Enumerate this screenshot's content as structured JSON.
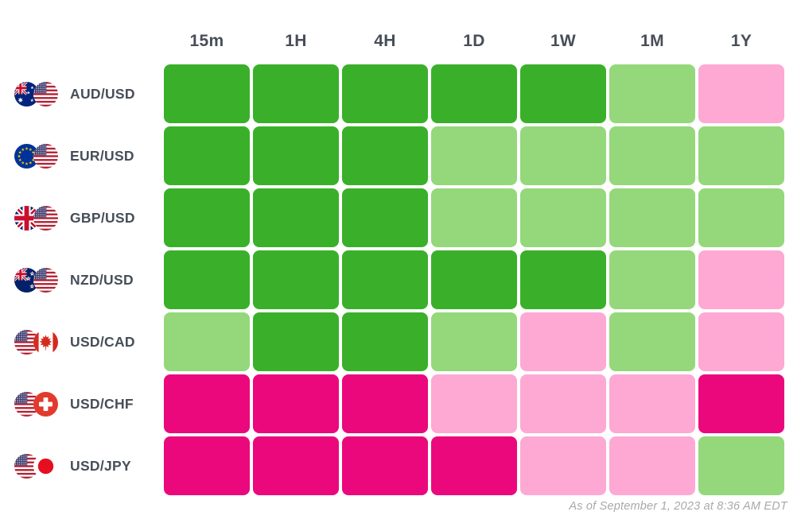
{
  "chart_data": {
    "type": "heatmap",
    "x_labels": [
      "15m",
      "1H",
      "4H",
      "1D",
      "1W",
      "1M",
      "1Y"
    ],
    "x_labels_position": "top",
    "y_labels": [
      "AUD/USD",
      "EUR/USD",
      "GBP/USD",
      "NZD/USD",
      "USD/CAD",
      "USD/CHF",
      "USD/JPY"
    ],
    "values": [
      [
        "strong-up",
        "strong-up",
        "strong-up",
        "strong-up",
        "strong-up",
        "up",
        "down"
      ],
      [
        "strong-up",
        "strong-up",
        "strong-up",
        "up",
        "up",
        "up",
        "up"
      ],
      [
        "strong-up",
        "strong-up",
        "strong-up",
        "up",
        "up",
        "up",
        "up"
      ],
      [
        "strong-up",
        "strong-up",
        "strong-up",
        "strong-up",
        "strong-up",
        "up",
        "down"
      ],
      [
        "up",
        "strong-up",
        "strong-up",
        "up",
        "down",
        "up",
        "down"
      ],
      [
        "strong-down",
        "strong-down",
        "strong-down",
        "down",
        "down",
        "down",
        "strong-down"
      ],
      [
        "strong-down",
        "strong-down",
        "strong-down",
        "strong-down",
        "down",
        "down",
        "up"
      ]
    ],
    "color_scale": {
      "strong-up": "#3AB02A",
      "up": "#94D87B",
      "down": "#FDA9D4",
      "strong-down": "#EB087D"
    },
    "legend_position": "none",
    "grid": false,
    "annotation": "As of September 1, 2023 at 8:36 AM EDT"
  },
  "columns": [
    "15m",
    "1H",
    "4H",
    "1D",
    "1W",
    "1M",
    "1Y"
  ],
  "rows": [
    {
      "pair": "AUD/USD",
      "base": "aud",
      "quote": "usd",
      "base_icon": "australia-flag-icon",
      "quote_icon": "us-flag-icon"
    },
    {
      "pair": "EUR/USD",
      "base": "eur",
      "quote": "usd",
      "base_icon": "eu-flag-icon",
      "quote_icon": "us-flag-icon"
    },
    {
      "pair": "GBP/USD",
      "base": "gbp",
      "quote": "usd",
      "base_icon": "uk-flag-icon",
      "quote_icon": "us-flag-icon"
    },
    {
      "pair": "NZD/USD",
      "base": "nzd",
      "quote": "usd",
      "base_icon": "new-zealand-flag-icon",
      "quote_icon": "us-flag-icon"
    },
    {
      "pair": "USD/CAD",
      "base": "usd",
      "quote": "cad",
      "base_icon": "us-flag-icon",
      "quote_icon": "canada-flag-icon"
    },
    {
      "pair": "USD/CHF",
      "base": "usd",
      "quote": "chf",
      "base_icon": "us-flag-icon",
      "quote_icon": "switzerland-flag-icon"
    },
    {
      "pair": "USD/JPY",
      "base": "usd",
      "quote": "jpy",
      "base_icon": "us-flag-icon",
      "quote_icon": "japan-flag-icon"
    }
  ],
  "footer": {
    "note": "As of September 1, 2023 at 8:36 AM EDT"
  },
  "colors": {
    "strong_up": "#3AB02A",
    "up": "#94D87B",
    "down": "#FDA9D4",
    "strong_down": "#EB087D",
    "header_text": "#474E58",
    "footer_text": "#A7A9AC",
    "background": "#FFFFFF"
  }
}
